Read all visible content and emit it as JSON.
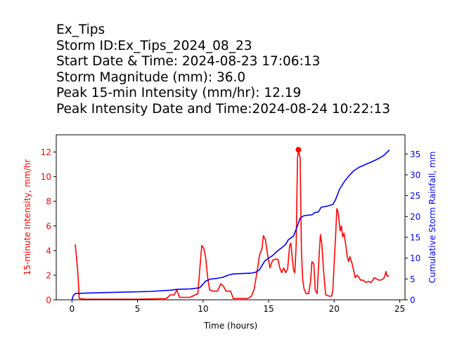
{
  "header": {
    "lines": [
      "Ex_Tips",
      "Storm ID:Ex_Tips_2024_08_23",
      "Start Date & Time: 2024-08-23 17:06:13",
      "Storm Magnitude (mm): 36.0",
      "Peak 15-min Intensity (mm/hr): 12.19",
      "Peak Intensity Date and Time:2024-08-24 10:22:13"
    ]
  },
  "colors": {
    "intensity": "#ff0000",
    "cumulative": "#0000ff",
    "axis": "#000000"
  },
  "chart_data": {
    "type": "line",
    "xlabel": "Time (hours)",
    "ylabel_left": "15-minute Intensity, mm/hr",
    "ylabel_right": "Cumulative Storm Rainfall, mm",
    "xlim": [
      -1.2,
      25.4
    ],
    "ylim_left": [
      0,
      13.4
    ],
    "ylim_right": [
      0,
      39.6
    ],
    "xticks": [
      0,
      5,
      10,
      15,
      20,
      25
    ],
    "yticks_left": [
      0,
      2,
      4,
      6,
      8,
      10,
      12
    ],
    "yticks_right": [
      0,
      5,
      10,
      15,
      20,
      25,
      30,
      35
    ],
    "grid": false,
    "peak": {
      "x": 17.27,
      "y": 12.19
    },
    "series": [
      {
        "axis": "left",
        "color": "#ff0000",
        "points": [
          [
            0.25,
            4.5
          ],
          [
            0.45,
            2.2
          ],
          [
            0.55,
            0.1
          ],
          [
            1,
            0.05
          ],
          [
            3,
            0.05
          ],
          [
            5,
            0.05
          ],
          [
            7.2,
            0.1
          ],
          [
            7.5,
            0.4
          ],
          [
            7.8,
            0.4
          ],
          [
            8.0,
            0.8
          ],
          [
            8.2,
            0.2
          ],
          [
            8.5,
            0.2
          ],
          [
            9.0,
            0.2
          ],
          [
            9.4,
            0.4
          ],
          [
            9.6,
            0.5
          ],
          [
            9.75,
            2.5
          ],
          [
            9.9,
            4.4
          ],
          [
            10.05,
            4.2
          ],
          [
            10.2,
            3.4
          ],
          [
            10.35,
            1.8
          ],
          [
            10.5,
            0.8
          ],
          [
            10.8,
            0.7
          ],
          [
            11.1,
            0.7
          ],
          [
            11.35,
            1.3
          ],
          [
            11.55,
            1.1
          ],
          [
            11.75,
            0.7
          ],
          [
            12.1,
            0.7
          ],
          [
            12.3,
            0.1
          ],
          [
            13.4,
            0.1
          ],
          [
            13.7,
            0.3
          ],
          [
            13.9,
            0.9
          ],
          [
            14.15,
            2.5
          ],
          [
            14.3,
            3.6
          ],
          [
            14.5,
            4.2
          ],
          [
            14.6,
            5.2
          ],
          [
            14.75,
            4.9
          ],
          [
            14.9,
            3.8
          ],
          [
            15.1,
            2.6
          ],
          [
            15.3,
            3.2
          ],
          [
            15.5,
            3.3
          ],
          [
            15.7,
            3.3
          ],
          [
            15.85,
            2.6
          ],
          [
            16.0,
            2.2
          ],
          [
            16.15,
            2.6
          ],
          [
            16.3,
            2.2
          ],
          [
            16.45,
            2.5
          ],
          [
            16.6,
            4.4
          ],
          [
            16.7,
            4.6
          ],
          [
            16.8,
            3.4
          ],
          [
            16.9,
            2.4
          ],
          [
            17.0,
            2.2
          ],
          [
            17.1,
            4.5
          ],
          [
            17.2,
            11.5
          ],
          [
            17.27,
            12.19
          ],
          [
            17.4,
            11.5
          ],
          [
            17.5,
            4.0
          ],
          [
            17.6,
            1.6
          ],
          [
            17.7,
            0.9
          ],
          [
            17.85,
            0.5
          ],
          [
            18.05,
            0.5
          ],
          [
            18.2,
            1.5
          ],
          [
            18.3,
            3.1
          ],
          [
            18.45,
            2.9
          ],
          [
            18.55,
            0.8
          ],
          [
            18.7,
            0.5
          ],
          [
            18.85,
            3.6
          ],
          [
            18.95,
            5.3
          ],
          [
            19.05,
            4.6
          ],
          [
            19.2,
            2.2
          ],
          [
            19.35,
            0.4
          ],
          [
            19.6,
            0.3
          ],
          [
            19.8,
            0.3
          ],
          [
            19.9,
            0.8
          ],
          [
            20.0,
            3.0
          ],
          [
            20.1,
            5.0
          ],
          [
            20.2,
            7.4
          ],
          [
            20.3,
            7.1
          ],
          [
            20.35,
            6.6
          ],
          [
            20.45,
            5.6
          ],
          [
            20.55,
            6.0
          ],
          [
            20.65,
            5.1
          ],
          [
            20.75,
            5.4
          ],
          [
            20.85,
            4.7
          ],
          [
            21.0,
            3.5
          ],
          [
            21.1,
            3.1
          ],
          [
            21.2,
            3.5
          ],
          [
            21.35,
            3.0
          ],
          [
            21.5,
            2.3
          ],
          [
            21.6,
            1.8
          ],
          [
            21.75,
            2.0
          ],
          [
            21.9,
            1.8
          ],
          [
            22.0,
            1.6
          ],
          [
            22.2,
            1.6
          ],
          [
            22.4,
            1.4
          ],
          [
            22.6,
            1.5
          ],
          [
            22.8,
            1.4
          ],
          [
            22.95,
            1.6
          ],
          [
            23.05,
            1.8
          ],
          [
            23.2,
            1.7
          ],
          [
            23.4,
            1.6
          ],
          [
            23.55,
            1.6
          ],
          [
            23.75,
            1.7
          ],
          [
            23.85,
            1.9
          ],
          [
            23.95,
            2.3
          ],
          [
            24.0,
            2.0
          ],
          [
            24.1,
            1.9
          ],
          [
            24.15,
            2.0
          ]
        ]
      },
      {
        "axis": "right",
        "color": "#0000ff",
        "points": [
          [
            0,
            0.0
          ],
          [
            0.1,
            1.0
          ],
          [
            0.25,
            1.5
          ],
          [
            0.5,
            1.55
          ],
          [
            2,
            1.7
          ],
          [
            4,
            1.85
          ],
          [
            6,
            2.0
          ],
          [
            7.5,
            2.3
          ],
          [
            8.0,
            2.5
          ],
          [
            9,
            2.6
          ],
          [
            9.75,
            2.9
          ],
          [
            10.2,
            4.5
          ],
          [
            10.6,
            5.0
          ],
          [
            11.0,
            5.1
          ],
          [
            11.5,
            5.4
          ],
          [
            11.9,
            5.9
          ],
          [
            12.3,
            6.2
          ],
          [
            13,
            6.3
          ],
          [
            13.7,
            6.4
          ],
          [
            14.0,
            6.6
          ],
          [
            14.3,
            7.2
          ],
          [
            14.7,
            9.3
          ],
          [
            15.0,
            10.0
          ],
          [
            15.3,
            10.6
          ],
          [
            15.7,
            11.8
          ],
          [
            16.0,
            12.5
          ],
          [
            16.3,
            13.3
          ],
          [
            16.5,
            14.4
          ],
          [
            16.9,
            15.3
          ],
          [
            17.2,
            17.8
          ],
          [
            17.4,
            19.6
          ],
          [
            17.7,
            20.2
          ],
          [
            18.3,
            20.4
          ],
          [
            18.5,
            20.9
          ],
          [
            18.8,
            21.1
          ],
          [
            19.0,
            22.2
          ],
          [
            19.5,
            22.5
          ],
          [
            19.9,
            22.9
          ],
          [
            20.1,
            24.0
          ],
          [
            20.4,
            26.5
          ],
          [
            20.8,
            28.5
          ],
          [
            21.2,
            30.0
          ],
          [
            21.5,
            31.0
          ],
          [
            21.9,
            31.8
          ],
          [
            22.4,
            32.5
          ],
          [
            23.0,
            33.3
          ],
          [
            23.5,
            34.1
          ],
          [
            23.8,
            34.7
          ],
          [
            24.1,
            35.6
          ],
          [
            24.2,
            36.0
          ]
        ]
      }
    ]
  }
}
